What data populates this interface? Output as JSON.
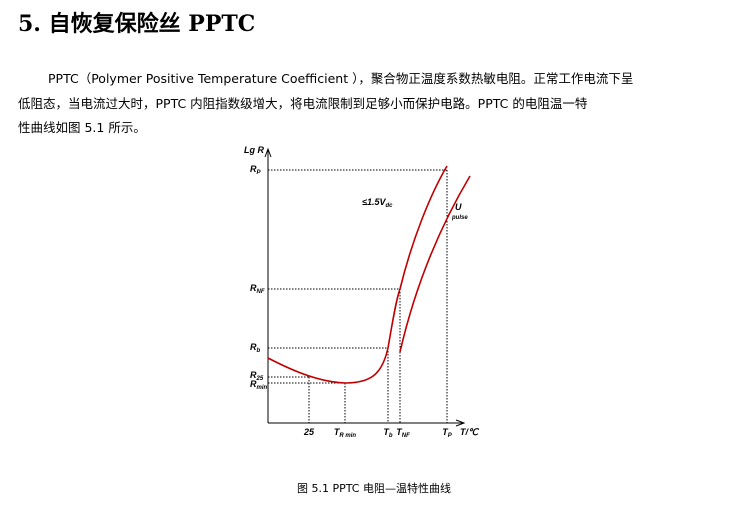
{
  "heading": "5.  自恢复保险丝 PPTC",
  "paragraph": {
    "lines": [
      "PPTC（Polymer Positive Temperature Coefficient ），聚合物正温度系数热敏电阻。正常工作电流下呈",
      "低阻态，当电流过大时，PPTC 内阻指数级增大，将电流限制到足够小而保护电路。PPTC 的电阻温一特",
      "性曲线如图 5.1 所示。"
    ]
  },
  "figure": {
    "y_axis_label": "Lg R",
    "y_labels": [
      {
        "main": "R",
        "sub": "P"
      },
      {
        "main": "R",
        "sub": "NF"
      },
      {
        "main": "R",
        "sub": "b"
      },
      {
        "main": "R",
        "sub": "25"
      },
      {
        "main": "R",
        "sub": "min"
      }
    ],
    "x_labels": [
      {
        "main": "25",
        "sub": ""
      },
      {
        "main": "T",
        "sub": "R min"
      },
      {
        "main": "T",
        "sub": "b"
      },
      {
        "main": "T",
        "sub": "NF"
      },
      {
        "main": "T",
        "sub": "P"
      }
    ],
    "x_axis_label": "T/℃",
    "voltage_label": {
      "main": "≤1.5V",
      "sub": "dc"
    },
    "pulse_label": {
      "main": "U",
      "sub": "pulse"
    },
    "caption": "图 5.1    PPTC 电阻—温特性曲线"
  }
}
